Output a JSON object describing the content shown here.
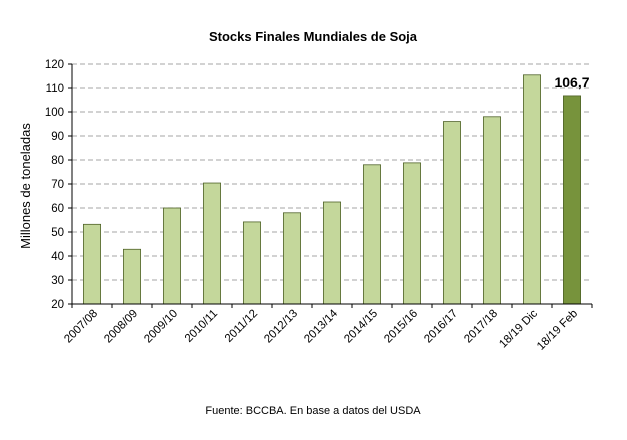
{
  "chart_data": {
    "type": "bar",
    "title": "Stocks Finales Mundiales de Soja",
    "ylabel": "Millones de toneladas",
    "xlabel": "",
    "categories": [
      "2007/08",
      "2008/09",
      "2009/10",
      "2010/11",
      "2011/12",
      "2012/13",
      "2013/14",
      "2014/15",
      "2015/16",
      "2016/17",
      "2017/18",
      "18/19 Dic",
      "18/19 Feb"
    ],
    "values": [
      53.2,
      42.8,
      60.0,
      70.4,
      54.2,
      58.0,
      62.5,
      78.0,
      78.8,
      96.0,
      98.0,
      115.5,
      106.7
    ],
    "ylim": [
      20,
      120
    ],
    "yticks": [
      20,
      30,
      40,
      50,
      60,
      70,
      80,
      90,
      100,
      110,
      120
    ],
    "grid": true,
    "legend": "none",
    "annotations": [
      {
        "category": "18/19 Feb",
        "text": "106,7"
      }
    ],
    "source": "Fuente: BCCBA. En base a datos del USDA",
    "colors": {
      "bar_fill": "#c4d79b",
      "bar_stroke": "#4f6228",
      "highlight_fill": "#77933c",
      "highlight_stroke": "#4f6228",
      "gridline": "#a6a6a6",
      "axis": "#000000"
    },
    "highlight_index": 12
  }
}
